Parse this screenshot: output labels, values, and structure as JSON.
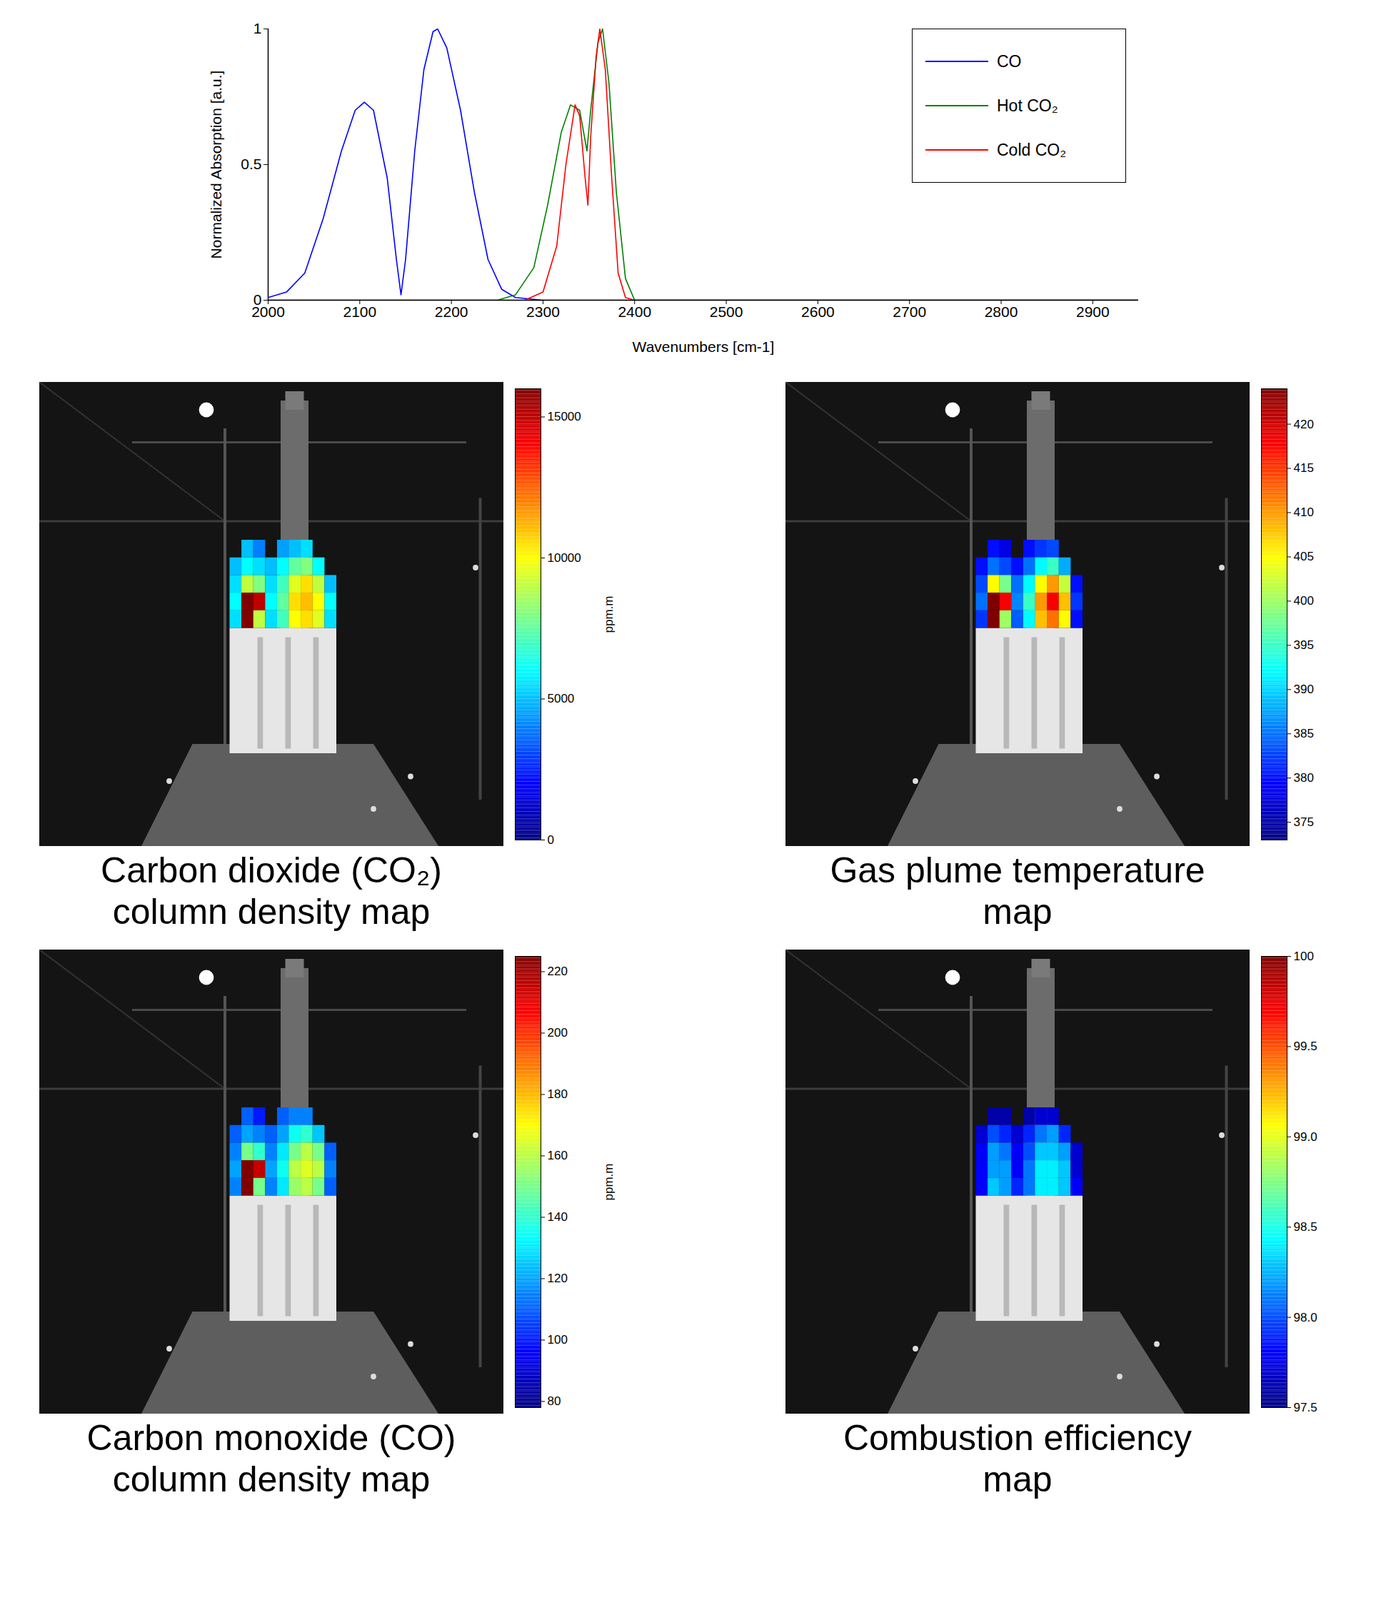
{
  "chart_data": [
    {
      "type": "line",
      "xlabel": "Wavenumbers [cm-1]",
      "ylabel": "Normalized Absorption [a.u.]",
      "xlim": [
        2000,
        2950
      ],
      "ylim": [
        0,
        1
      ],
      "xticks": [
        2000,
        2100,
        2200,
        2300,
        2400,
        2500,
        2600,
        2700,
        2800,
        2900
      ],
      "yticks": [
        0,
        0.5,
        1
      ],
      "legend": "top-right",
      "series": [
        {
          "name": "CO",
          "color": "#0000ff",
          "x": [
            2000,
            2020,
            2040,
            2060,
            2080,
            2095,
            2105,
            2115,
            2130,
            2140,
            2145,
            2150,
            2160,
            2170,
            2180,
            2185,
            2195,
            2210,
            2225,
            2240,
            2255,
            2270,
            2300,
            2950
          ],
          "values": [
            0.01,
            0.03,
            0.1,
            0.3,
            0.55,
            0.7,
            0.73,
            0.7,
            0.45,
            0.15,
            0.02,
            0.15,
            0.55,
            0.85,
            0.99,
            1.0,
            0.93,
            0.7,
            0.4,
            0.15,
            0.04,
            0.01,
            0,
            0
          ]
        },
        {
          "name": "Hot CO₂",
          "color": "#008000",
          "x": [
            2000,
            2250,
            2270,
            2290,
            2305,
            2320,
            2330,
            2340,
            2348,
            2352,
            2360,
            2365,
            2372,
            2380,
            2390,
            2400,
            2950
          ],
          "values": [
            0,
            0,
            0.02,
            0.12,
            0.35,
            0.62,
            0.72,
            0.7,
            0.55,
            0.7,
            0.95,
            1.0,
            0.8,
            0.4,
            0.08,
            0,
            0
          ]
        },
        {
          "name": "Cold CO₂",
          "color": "#ff0000",
          "x": [
            2000,
            2280,
            2300,
            2315,
            2325,
            2335,
            2340,
            2346,
            2349,
            2352,
            2358,
            2362,
            2368,
            2375,
            2382,
            2390,
            2400,
            2950
          ],
          "values": [
            0,
            0,
            0.03,
            0.2,
            0.5,
            0.72,
            0.68,
            0.45,
            0.35,
            0.6,
            0.9,
            1.0,
            0.85,
            0.45,
            0.1,
            0.01,
            0,
            0
          ]
        }
      ]
    },
    {
      "type": "heatmap",
      "title": "Carbon dioxide (CO₂) column density map",
      "cells": [
        [
          null,
          5000,
          4000,
          null,
          4500,
          5000,
          5500,
          null,
          null
        ],
        [
          5000,
          6000,
          5500,
          5000,
          6000,
          7500,
          8000,
          6000,
          null
        ],
        [
          5500,
          9000,
          8000,
          5500,
          7000,
          9500,
          10500,
          9000,
          5000
        ],
        [
          6000,
          16000,
          15000,
          6000,
          7500,
          10500,
          11000,
          10000,
          6000
        ],
        [
          5500,
          16000,
          9000,
          5500,
          7000,
          10000,
          10500,
          9500,
          5500
        ]
      ],
      "color_lim": [
        0,
        16000
      ],
      "color_ticks": [
        0,
        5000,
        10000,
        15000
      ],
      "color_label": "ppm.m"
    },
    {
      "type": "heatmap",
      "title": "Gas plume temperature map",
      "cells": [
        [
          null,
          380,
          378,
          null,
          380,
          382,
          383,
          null,
          null
        ],
        [
          380,
          385,
          383,
          380,
          385,
          392,
          395,
          388,
          null
        ],
        [
          383,
          405,
          398,
          385,
          392,
          405,
          410,
          402,
          380
        ],
        [
          385,
          424,
          418,
          386,
          395,
          410,
          418,
          408,
          382
        ],
        [
          382,
          424,
          400,
          384,
          392,
          408,
          412,
          405,
          380
        ]
      ],
      "color_lim": [
        373,
        424
      ],
      "color_ticks": [
        375,
        380,
        385,
        390,
        395,
        400,
        405,
        410,
        415,
        420
      ]
    },
    {
      "type": "heatmap",
      "title": "Carbon monoxide (CO) column density map",
      "cells": [
        [
          null,
          110,
          100,
          null,
          110,
          115,
          115,
          null,
          null
        ],
        [
          110,
          120,
          115,
          110,
          120,
          135,
          140,
          125,
          null
        ],
        [
          115,
          150,
          140,
          115,
          130,
          150,
          160,
          150,
          110
        ],
        [
          120,
          225,
          215,
          120,
          135,
          160,
          165,
          160,
          115
        ],
        [
          115,
          225,
          150,
          115,
          130,
          155,
          160,
          150,
          110
        ]
      ],
      "color_lim": [
        78,
        225
      ],
      "color_ticks": [
        80,
        100,
        120,
        140,
        160,
        180,
        200,
        220
      ],
      "color_label": "ppm.m"
    },
    {
      "type": "heatmap",
      "title": "Combustion efficiency map",
      "cells": [
        [
          null,
          97.6,
          97.6,
          null,
          97.6,
          97.7,
          97.7,
          null,
          null
        ],
        [
          97.7,
          98.0,
          97.9,
          97.7,
          97.9,
          98.1,
          98.2,
          97.9,
          null
        ],
        [
          97.8,
          98.2,
          98.1,
          97.8,
          98.0,
          98.3,
          98.3,
          98.2,
          97.7
        ],
        [
          97.8,
          98.2,
          98.2,
          97.8,
          98.1,
          98.4,
          98.4,
          98.3,
          97.7
        ],
        [
          97.8,
          98.3,
          98.2,
          97.9,
          98.1,
          98.4,
          98.4,
          98.3,
          97.8
        ]
      ],
      "color_lim": [
        97.5,
        100
      ],
      "color_ticks": [
        97.5,
        {
          "value": 98,
          "label": "98.0"
        },
        98.5,
        {
          "value": 99,
          "label": "99.0"
        },
        99.5,
        100
      ]
    }
  ]
}
